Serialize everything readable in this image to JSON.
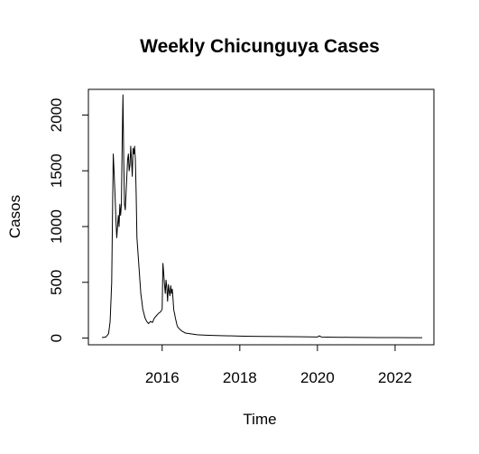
{
  "chart_data": {
    "type": "line",
    "title": "Weekly Chicunguya Cases",
    "xlabel": "Time",
    "ylabel": "Casos",
    "xlim": [
      2014.1,
      2023.0
    ],
    "ylim": [
      -60,
      2230
    ],
    "xticks": [
      2016,
      2018,
      2020,
      2022
    ],
    "yticks": [
      0,
      500,
      1000,
      1500,
      2000
    ],
    "grid": false,
    "legend": "none",
    "series": [
      {
        "color": "#000000",
        "x": [
          2014.45,
          2014.55,
          2014.62,
          2014.66,
          2014.7,
          2014.74,
          2014.76,
          2014.79,
          2014.81,
          2014.83,
          2014.85,
          2014.87,
          2014.89,
          2014.91,
          2014.93,
          2014.95,
          2014.97,
          2014.99,
          2015.01,
          2015.03,
          2015.05,
          2015.07,
          2015.09,
          2015.11,
          2015.13,
          2015.15,
          2015.17,
          2015.19,
          2015.21,
          2015.23,
          2015.25,
          2015.27,
          2015.29,
          2015.31,
          2015.33,
          2015.35,
          2015.37,
          2015.39,
          2015.41,
          2015.43,
          2015.45,
          2015.48,
          2015.5,
          2015.53,
          2015.56,
          2015.6,
          2015.65,
          2015.7,
          2015.75,
          2015.8,
          2015.85,
          2015.9,
          2015.94,
          2015.97,
          2016.0,
          2016.02,
          2016.04,
          2016.06,
          2016.08,
          2016.1,
          2016.12,
          2016.14,
          2016.16,
          2016.18,
          2016.2,
          2016.22,
          2016.24,
          2016.26,
          2016.28,
          2016.3,
          2016.32,
          2016.34,
          2016.36,
          2016.38,
          2016.4,
          2016.45,
          2016.5,
          2016.55,
          2016.6,
          2016.7,
          2016.8,
          2016.9,
          2017.0,
          2017.2,
          2017.5,
          2017.8,
          2018.0,
          2018.3,
          2018.6,
          2019.0,
          2019.3,
          2019.6,
          2020.0,
          2020.05,
          2020.1,
          2020.4,
          2020.8,
          2021.2,
          2021.6,
          2022.0,
          2022.4,
          2022.7
        ],
        "y": [
          5,
          10,
          40,
          150,
          500,
          1650,
          1500,
          1250,
          1050,
          900,
          1000,
          1100,
          1000,
          1200,
          1100,
          1200,
          1750,
          2180,
          1600,
          1200,
          1150,
          1300,
          1450,
          1600,
          1650,
          1500,
          1550,
          1720,
          1600,
          1450,
          1700,
          1650,
          1720,
          1600,
          1300,
          900,
          800,
          700,
          600,
          500,
          400,
          320,
          260,
          220,
          180,
          150,
          130,
          150,
          140,
          180,
          200,
          220,
          230,
          240,
          260,
          670,
          580,
          480,
          400,
          520,
          450,
          330,
          480,
          420,
          380,
          470,
          400,
          440,
          350,
          250,
          220,
          180,
          150,
          120,
          100,
          80,
          65,
          55,
          45,
          40,
          35,
          30,
          28,
          25,
          22,
          20,
          18,
          16,
          15,
          14,
          13,
          12,
          10,
          20,
          10,
          8,
          7,
          6,
          5,
          5,
          4,
          4
        ]
      }
    ]
  }
}
